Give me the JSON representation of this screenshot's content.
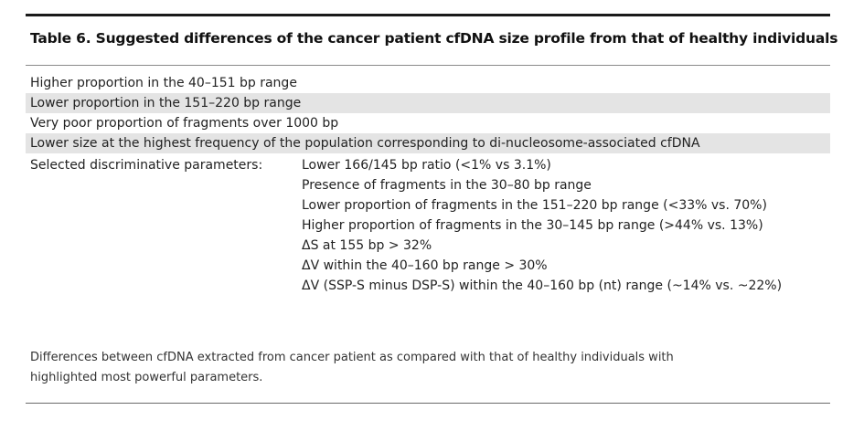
{
  "table": {
    "title": "Table 6. Suggested differences of the cancer patient cfDNA size profile from that of healthy individuals",
    "rows": [
      "Higher proportion in the 40–151 bp range",
      "Lower proportion in the 151–220 bp range",
      "Very poor proportion of fragments over 1000 bp",
      "Lower size at the highest frequency of the population corresponding to di-nucleosome-associated cfDNA"
    ],
    "params_label": "Selected discriminative parameters:",
    "params": [
      "Lower 166/145 bp ratio (<1% vs 3.1%)",
      "Presence of fragments in the 30–80 bp range",
      "Lower proportion of fragments in the 151–220 bp range (<33% vs. 70%)",
      "Higher proportion of fragments in the 30–145 bp range (>44% vs. 13%)",
      "ΔS at 155 bp > 32%",
      "ΔV within the 40–160 bp range > 30%",
      "ΔV (SSP-S minus DSP-S) within the 40–160 bp (nt) range (~14% vs. ~22%)"
    ],
    "footnote_lines": [
      "Differences between cfDNA extracted from cancer patient as compared with that of healthy individuals with",
      "highlighted most powerful parameters."
    ]
  }
}
